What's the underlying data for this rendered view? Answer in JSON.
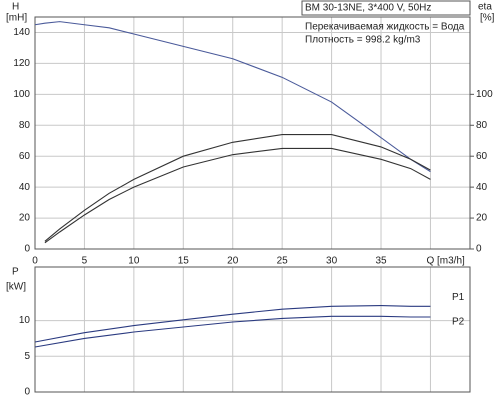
{
  "chart_data": [
    {
      "type": "line",
      "ylabel": [
        "H",
        "[mH]"
      ],
      "y2label": [
        "eta",
        "[%]"
      ],
      "annotations": [
        "BM 30-13NE, 3*400 V, 50Hz",
        "Перекачиваемая жидкость = Вода",
        "Плотность = 998.2 kg/m3"
      ],
      "x": [
        0,
        1,
        2.5,
        5,
        7.5,
        10,
        15,
        20,
        25,
        30,
        35,
        38,
        40
      ],
      "xlim": [
        0,
        44
      ],
      "xticks": [
        0,
        5,
        10,
        15,
        20,
        25,
        30,
        35,
        {
          "value": 40,
          "label": "Q [m3/h]"
        }
      ],
      "ylim": [
        0,
        150
      ],
      "yticks": [
        0,
        20,
        40,
        60,
        80,
        100,
        120,
        140
      ],
      "y2lim": [
        0,
        150
      ],
      "y2ticks": [
        0,
        20,
        40,
        60,
        80,
        100
      ],
      "grid": true,
      "series": [
        {
          "color": "#4a5a9a",
          "values": [
            145,
            146,
            147,
            145,
            143,
            139,
            131,
            123,
            111,
            95,
            72,
            58,
            50
          ]
        },
        {
          "color": "#333333",
          "axis": "y2",
          "values": [
            null,
            5,
            13,
            25,
            36,
            45,
            60,
            69,
            74,
            74,
            66,
            58,
            51
          ]
        },
        {
          "color": "#333333",
          "axis": "y2",
          "values": [
            null,
            4,
            11,
            22,
            32,
            40,
            53,
            61,
            65,
            65,
            58,
            52,
            45
          ]
        }
      ]
    },
    {
      "type": "line",
      "ylabel": [
        "P",
        "[kW]"
      ],
      "x": [
        0,
        5,
        10,
        15,
        20,
        25,
        30,
        35,
        38,
        40
      ],
      "xlim": [
        0,
        44
      ],
      "xticks": [
        0,
        5,
        10,
        15,
        20,
        25,
        30,
        35,
        40
      ],
      "show_xtick_labels": false,
      "ylim": [
        0,
        17.5
      ],
      "yticks": [
        0,
        5,
        10
      ],
      "grid": true,
      "series": [
        {
          "name": "P1",
          "color": "#2a3a80",
          "values": [
            7.0,
            8.3,
            9.3,
            10.1,
            10.9,
            11.6,
            12.0,
            12.1,
            12.0,
            12.0
          ]
        },
        {
          "name": "P2",
          "color": "#2a3a80",
          "values": [
            6.3,
            7.5,
            8.4,
            9.1,
            9.8,
            10.3,
            10.6,
            10.6,
            10.5,
            10.5
          ]
        }
      ]
    }
  ]
}
